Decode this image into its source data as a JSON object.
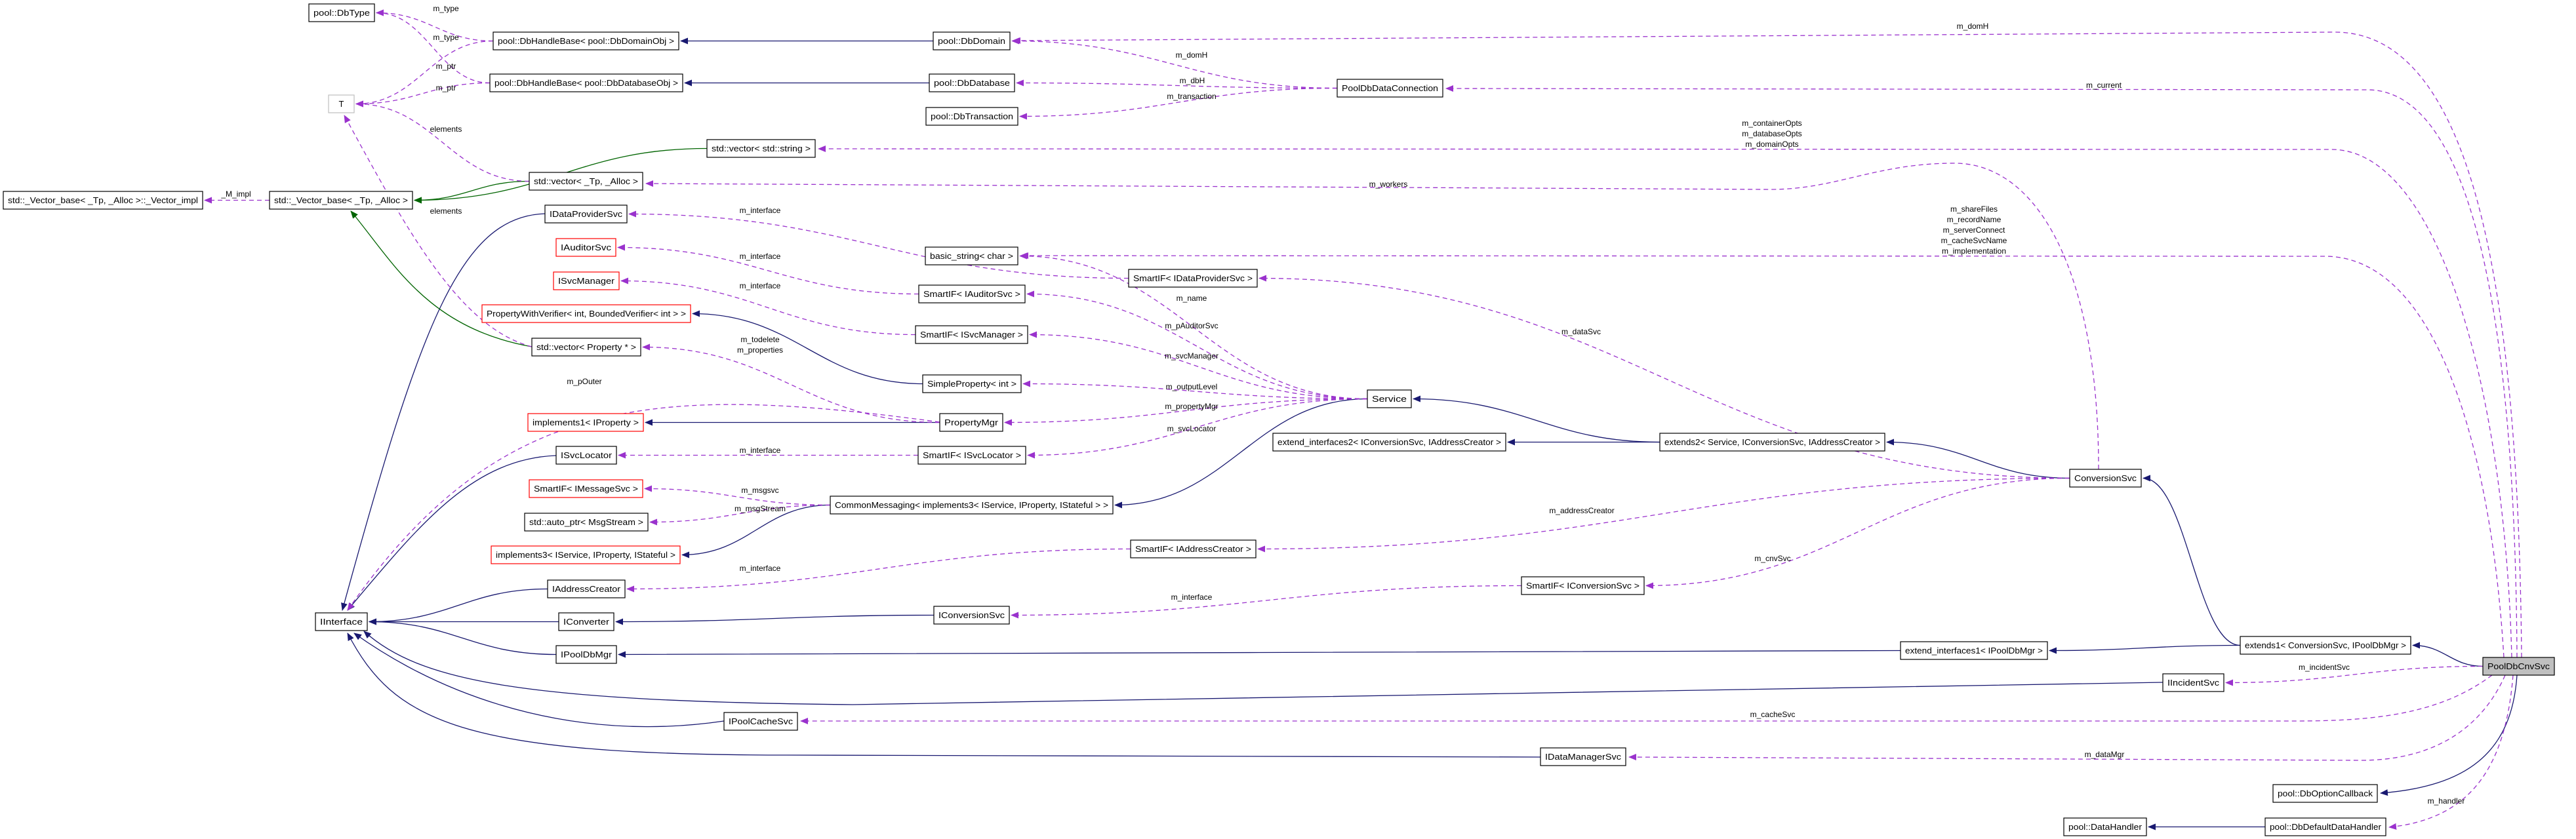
{
  "diagram": {
    "title": "",
    "colors": {
      "inherit": "#191970",
      "template": "#006400",
      "usage": "#9a32cd",
      "highlight_fill": "#bfbfbf",
      "undocumented_border": "#ff0000"
    },
    "nodes": [
      {
        "id": "DbType",
        "label": "pool::DbType",
        "style": "normal"
      },
      {
        "id": "HBDom",
        "label": "pool::DbHandleBase< pool::DbDomainObj >",
        "style": "normal"
      },
      {
        "id": "HBDb",
        "label": "pool::DbHandleBase< pool::DbDatabaseObj >",
        "style": "normal"
      },
      {
        "id": "T",
        "label": "T",
        "style": "gray"
      },
      {
        "id": "VecStr",
        "label": "std::vector< std::string >",
        "style": "normal"
      },
      {
        "id": "VecTp",
        "label": "std::vector< _Tp, _Alloc >",
        "style": "normal"
      },
      {
        "id": "VImpl",
        "label": "std::_Vector_base< _Tp, _Alloc >::_Vector_impl",
        "style": "normal"
      },
      {
        "id": "VBase",
        "label": "std::_Vector_base< _Tp, _Alloc >",
        "style": "normal"
      },
      {
        "id": "IDPS",
        "label": "IDataProviderSvc",
        "style": "normal"
      },
      {
        "id": "IAud",
        "label": "IAuditorSvc",
        "style": "red"
      },
      {
        "id": "ISvcM",
        "label": "ISvcManager",
        "style": "red"
      },
      {
        "id": "PWV",
        "label": "PropertyWithVerifier< int, BoundedVerifier< int > >",
        "style": "red"
      },
      {
        "id": "VecProp",
        "label": "std::vector< Property * >",
        "style": "normal"
      },
      {
        "id": "Impl1",
        "label": "implements1< IProperty >",
        "style": "red"
      },
      {
        "id": "ISvcL",
        "label": "ISvcLocator",
        "style": "normal"
      },
      {
        "id": "SIMsg",
        "label": "SmartIF< IMessageSvc >",
        "style": "red"
      },
      {
        "id": "AutoPtr",
        "label": "std::auto_ptr< MsgStream >",
        "style": "normal"
      },
      {
        "id": "Impl3",
        "label": "implements3< IService, IProperty, IStateful >",
        "style": "red"
      },
      {
        "id": "IAddr",
        "label": "IAddressCreator",
        "style": "normal"
      },
      {
        "id": "IInt",
        "label": "IInterface",
        "style": "normal"
      },
      {
        "id": "IConv",
        "label": "IConverter",
        "style": "normal"
      },
      {
        "id": "IPDM",
        "label": "IPoolDbMgr",
        "style": "normal"
      },
      {
        "id": "IPCS",
        "label": "IPoolCacheSvc",
        "style": "normal"
      },
      {
        "id": "DbDomain",
        "label": "pool::DbDomain",
        "style": "normal"
      },
      {
        "id": "DbDatabase",
        "label": "pool::DbDatabase",
        "style": "normal"
      },
      {
        "id": "DbTransaction",
        "label": "pool::DbTransaction",
        "style": "normal"
      },
      {
        "id": "PDDC",
        "label": "PoolDbDataConnection",
        "style": "normal"
      },
      {
        "id": "BStr",
        "label": "basic_string< char >",
        "style": "normal"
      },
      {
        "id": "SIDPS",
        "label": "SmartIF< IDataProviderSvc >",
        "style": "normal"
      },
      {
        "id": "SIAud",
        "label": "SmartIF< IAuditorSvc >",
        "style": "normal"
      },
      {
        "id": "SISvcM",
        "label": "SmartIF< ISvcManager >",
        "style": "normal"
      },
      {
        "id": "SProp",
        "label": "SimpleProperty< int >",
        "style": "normal"
      },
      {
        "id": "Service",
        "label": "Service",
        "style": "normal"
      },
      {
        "id": "PMgr",
        "label": "PropertyMgr",
        "style": "normal"
      },
      {
        "id": "SISvcL",
        "label": "SmartIF< ISvcLocator >",
        "style": "normal"
      },
      {
        "id": "EI2",
        "label": "extend_interfaces2< IConversionSvc, IAddressCreator >",
        "style": "normal"
      },
      {
        "id": "Ext2",
        "label": "extends2< Service, IConversionSvc, IAddressCreator >",
        "style": "normal"
      },
      {
        "id": "CM",
        "label": "CommonMessaging< implements3< IService, IProperty, IStateful > >",
        "style": "normal"
      },
      {
        "id": "SIAddr",
        "label": "SmartIF< IAddressCreator >",
        "style": "normal"
      },
      {
        "id": "SIConv",
        "label": "SmartIF< IConversionSvc >",
        "style": "normal"
      },
      {
        "id": "IConvSvc",
        "label": "IConversionSvc",
        "style": "normal"
      },
      {
        "id": "IDMS",
        "label": "IDataManagerSvc",
        "style": "normal"
      },
      {
        "id": "CnvSvc",
        "label": "ConversionSvc",
        "style": "normal"
      },
      {
        "id": "EI1",
        "label": "extend_interfaces1< IPoolDbMgr >",
        "style": "normal"
      },
      {
        "id": "Ext1",
        "label": "extends1< ConversionSvc, IPoolDbMgr >",
        "style": "normal"
      },
      {
        "id": "Pool",
        "label": "PoolDbCnvSvc",
        "style": "root"
      },
      {
        "id": "IInc",
        "label": "IIncidentSvc",
        "style": "normal"
      },
      {
        "id": "DOC",
        "label": "pool::DbOptionCallback",
        "style": "normal"
      },
      {
        "id": "DH",
        "label": "pool::DataHandler",
        "style": "normal"
      },
      {
        "id": "DDH",
        "label": "pool::DbDefaultDataHandler",
        "style": "normal"
      }
    ],
    "edges": [
      {
        "from": "DbDomain",
        "to": "HBDom",
        "kind": "inherit",
        "label": []
      },
      {
        "from": "DbDatabase",
        "to": "HBDb",
        "kind": "inherit",
        "label": []
      },
      {
        "from": "IDPS",
        "to": "IInt",
        "kind": "inherit",
        "label": []
      },
      {
        "from": "ISvcL",
        "to": "IInt",
        "kind": "inherit",
        "label": []
      },
      {
        "from": "IAddr",
        "to": "IInt",
        "kind": "inherit",
        "label": []
      },
      {
        "from": "IConv",
        "to": "IInt",
        "kind": "inherit",
        "label": []
      },
      {
        "from": "IPDM",
        "to": "IInt",
        "kind": "inherit",
        "label": []
      },
      {
        "from": "IInc",
        "to": "IInt",
        "kind": "inherit",
        "label": []
      },
      {
        "from": "IPCS",
        "to": "IInt",
        "kind": "inherit",
        "label": []
      },
      {
        "from": "IDMS",
        "to": "IInt",
        "kind": "inherit",
        "label": []
      },
      {
        "from": "IConvSvc",
        "to": "IConv",
        "kind": "inherit",
        "label": []
      },
      {
        "from": "PMgr",
        "to": "Impl1",
        "kind": "inherit",
        "label": []
      },
      {
        "from": "SProp",
        "to": "PWV",
        "kind": "inherit",
        "label": []
      },
      {
        "from": "Service",
        "to": "CM",
        "kind": "inherit",
        "label": []
      },
      {
        "from": "CM",
        "to": "Impl3",
        "kind": "inherit",
        "label": []
      },
      {
        "from": "Ext2",
        "to": "Service",
        "kind": "inherit",
        "label": []
      },
      {
        "from": "Ext2",
        "to": "EI2",
        "kind": "inherit",
        "label": []
      },
      {
        "from": "CnvSvc",
        "to": "Ext2",
        "kind": "inherit",
        "label": []
      },
      {
        "from": "Ext1",
        "to": "CnvSvc",
        "kind": "inherit",
        "label": []
      },
      {
        "from": "Ext1",
        "to": "EI1",
        "kind": "inherit",
        "label": []
      },
      {
        "from": "EI1",
        "to": "IPDM",
        "kind": "inherit",
        "label": []
      },
      {
        "from": "Pool",
        "to": "Ext1",
        "kind": "inherit",
        "label": []
      },
      {
        "from": "Pool",
        "to": "DOC",
        "kind": "inherit",
        "label": []
      },
      {
        "from": "DDH",
        "to": "DH",
        "kind": "inherit",
        "label": []
      },
      {
        "from": "VecStr",
        "to": "VBase",
        "kind": "template",
        "label": []
      },
      {
        "from": "VecTp",
        "to": "VBase",
        "kind": "template",
        "label": []
      },
      {
        "from": "VecProp",
        "to": "VBase",
        "kind": "template",
        "label": []
      },
      {
        "from": "HBDom",
        "to": "DbType",
        "kind": "usage",
        "label": [
          "m_type"
        ]
      },
      {
        "from": "HBDb",
        "to": "DbType",
        "kind": "usage",
        "label": [
          "m_type"
        ]
      },
      {
        "from": "HBDom",
        "to": "T",
        "kind": "usage",
        "label": [
          "m_ptr"
        ]
      },
      {
        "from": "HBDb",
        "to": "T",
        "kind": "usage",
        "label": [
          "m_ptr"
        ]
      },
      {
        "from": "VecTp",
        "to": "T",
        "kind": "usage",
        "label": [
          "elements"
        ]
      },
      {
        "from": "VecProp",
        "to": "T",
        "kind": "usage",
        "label": [
          "elements"
        ]
      },
      {
        "from": "VBase",
        "to": "VImpl",
        "kind": "usage",
        "label": [
          "_M_impl"
        ]
      },
      {
        "from": "PDDC",
        "to": "DbDomain",
        "kind": "usage",
        "label": [
          "m_domH"
        ]
      },
      {
        "from": "PDDC",
        "to": "DbDatabase",
        "kind": "usage",
        "label": [
          "m_dbH"
        ]
      },
      {
        "from": "PDDC",
        "to": "DbTransaction",
        "kind": "usage",
        "label": [
          "m_transaction"
        ]
      },
      {
        "from": "Pool",
        "to": "DbDomain",
        "kind": "usage",
        "label": [
          "m_domH"
        ]
      },
      {
        "from": "Pool",
        "to": "PDDC",
        "kind": "usage",
        "label": [
          "m_current"
        ]
      },
      {
        "from": "Pool",
        "to": "VecStr",
        "kind": "usage",
        "label": [
          "m_containerOpts",
          "m_databaseOpts",
          "m_domainOpts"
        ]
      },
      {
        "from": "CnvSvc",
        "to": "VecTp",
        "kind": "usage",
        "label": [
          "m_workers"
        ]
      },
      {
        "from": "Pool",
        "to": "BStr",
        "kind": "usage",
        "label": [
          "m_shareFiles",
          "m_recordName",
          "m_serverConnect",
          "m_cacheSvcName",
          "m_implementation"
        ]
      },
      {
        "from": "SIDPS",
        "to": "IDPS",
        "kind": "usage",
        "label": [
          "m_interface"
        ]
      },
      {
        "from": "SIAud",
        "to": "IAud",
        "kind": "usage",
        "label": [
          "m_interface"
        ]
      },
      {
        "from": "SISvcM",
        "to": "ISvcM",
        "kind": "usage",
        "label": [
          "m_interface"
        ]
      },
      {
        "from": "PMgr",
        "to": "VecProp",
        "kind": "usage",
        "label": [
          "m_todelete",
          "m_properties"
        ]
      },
      {
        "from": "PMgr",
        "to": "IInt",
        "kind": "usage",
        "label": [
          "m_pOuter"
        ]
      },
      {
        "from": "SISvcL",
        "to": "ISvcL",
        "kind": "usage",
        "label": [
          "m_interface"
        ]
      },
      {
        "from": "CM",
        "to": "SIMsg",
        "kind": "usage",
        "label": [
          "m_msgsvc"
        ]
      },
      {
        "from": "CM",
        "to": "AutoPtr",
        "kind": "usage",
        "label": [
          "m_msgStream"
        ]
      },
      {
        "from": "SIAddr",
        "to": "IAddr",
        "kind": "usage",
        "label": [
          "m_interface"
        ]
      },
      {
        "from": "SIConv",
        "to": "IConvSvc",
        "kind": "usage",
        "label": [
          "m_interface"
        ]
      },
      {
        "from": "Service",
        "to": "BStr",
        "kind": "usage",
        "label": [
          "m_name"
        ]
      },
      {
        "from": "Service",
        "to": "SIAud",
        "kind": "usage",
        "label": [
          "m_pAuditorSvc"
        ]
      },
      {
        "from": "Service",
        "to": "SISvcM",
        "kind": "usage",
        "label": [
          "m_svcManager"
        ]
      },
      {
        "from": "Service",
        "to": "SProp",
        "kind": "usage",
        "label": [
          "m_outputLevel"
        ]
      },
      {
        "from": "Service",
        "to": "PMgr",
        "kind": "usage",
        "label": [
          "m_propertyMgr"
        ]
      },
      {
        "from": "Service",
        "to": "SISvcL",
        "kind": "usage",
        "label": [
          "m_svcLocator"
        ]
      },
      {
        "from": "CnvSvc",
        "to": "SIDPS",
        "kind": "usage",
        "label": [
          "m_dataSvc"
        ]
      },
      {
        "from": "CnvSvc",
        "to": "SIAddr",
        "kind": "usage",
        "label": [
          "m_addressCreator"
        ]
      },
      {
        "from": "CnvSvc",
        "to": "SIConv",
        "kind": "usage",
        "label": [
          "m_cnvSvc"
        ]
      },
      {
        "from": "Pool",
        "to": "IInc",
        "kind": "usage",
        "label": [
          "m_incidentSvc"
        ]
      },
      {
        "from": "Pool",
        "to": "IPCS",
        "kind": "usage",
        "label": [
          "m_cacheSvc"
        ]
      },
      {
        "from": "Pool",
        "to": "IDMS",
        "kind": "usage",
        "label": [
          "m_dataMgr"
        ]
      },
      {
        "from": "Pool",
        "to": "DDH",
        "kind": "usage",
        "label": [
          "m_handler"
        ]
      }
    ]
  }
}
